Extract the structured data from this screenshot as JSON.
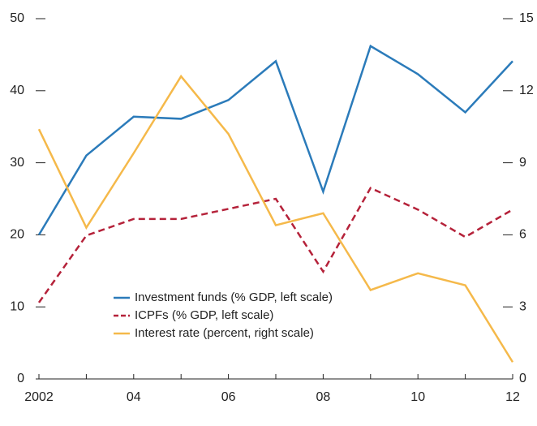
{
  "chart_data": {
    "type": "line",
    "categories": [
      "2002",
      null,
      "04",
      null,
      "06",
      null,
      "08",
      null,
      "10",
      null,
      "12"
    ],
    "series": [
      {
        "name": "Investment funds (% GDP, left scale)",
        "color": "#2b7bba",
        "values": [
          20,
          31,
          36.4,
          36.1,
          38.7,
          44.1,
          26,
          46.2,
          42.3,
          37,
          44.1
        ]
      },
      {
        "name": "ICPFs (% GDP, left scale)",
        "color": "#b5223a",
        "dash": true,
        "values": [
          10.6,
          19.9,
          22.2,
          22.2,
          23.6,
          25,
          14.9,
          26.5,
          23.5,
          19.7,
          23.5
        ]
      },
      {
        "name": "Interest rate (percent, right scale)",
        "color": "#f5b94a",
        "axis": "y2",
        "values": [
          10.4,
          6.3,
          9.4,
          12.6,
          10.2,
          6.4,
          6.9,
          3.7,
          4.4,
          3.9,
          0.7
        ]
      }
    ],
    "ylim": [
      0,
      50
    ],
    "yticks": [
      0,
      10,
      20,
      30,
      40,
      50
    ],
    "y2lim": [
      0,
      15
    ],
    "y2ticks": [
      0,
      3,
      6,
      9,
      12,
      15
    ]
  }
}
